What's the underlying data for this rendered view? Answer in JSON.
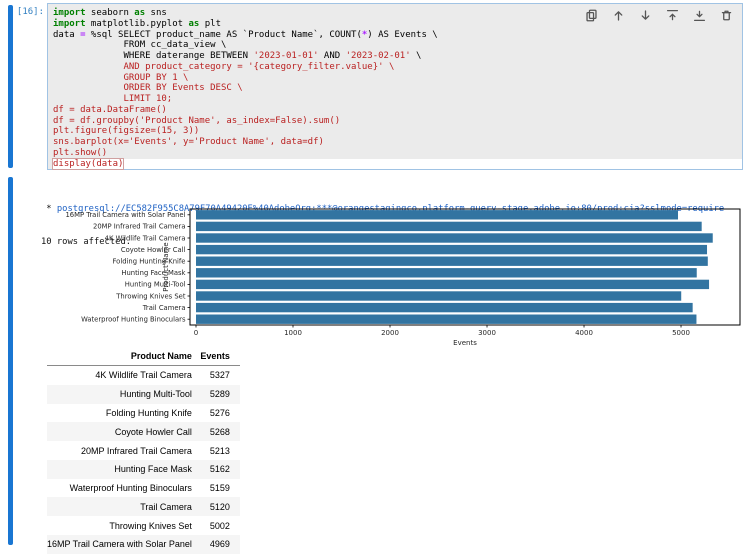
{
  "cell": {
    "execution_count": "[16]:",
    "toolbar_icons": [
      "duplicate-icon",
      "move-up-icon",
      "move-down-icon",
      "insert-above-icon",
      "insert-below-icon",
      "delete-icon"
    ],
    "code_lines": [
      {
        "segments": [
          {
            "s": "kw",
            "t": "import"
          },
          {
            "s": "p",
            "t": " seaborn "
          },
          {
            "s": "kw",
            "t": "as"
          },
          {
            "s": "p",
            "t": " sns"
          }
        ]
      },
      {
        "segments": [
          {
            "s": "kw",
            "t": "import"
          },
          {
            "s": "p",
            "t": " matplotlib.pyplot "
          },
          {
            "s": "kw",
            "t": "as"
          },
          {
            "s": "p",
            "t": " plt"
          }
        ]
      },
      {
        "segments": [
          {
            "s": "p",
            "t": "data "
          },
          {
            "s": "op",
            "t": "="
          },
          {
            "s": "p",
            "t": " %sql SELECT product_name AS `Product Name`, COUNT("
          },
          {
            "s": "op",
            "t": "*"
          },
          {
            "s": "p",
            "t": ") AS Events \\"
          }
        ]
      },
      {
        "segments": [
          {
            "s": "p",
            "t": "             FROM cc_data_view \\"
          }
        ]
      },
      {
        "segments": [
          {
            "s": "p",
            "t": "             WHERE daterange BETWEEN "
          },
          {
            "s": "str",
            "t": "'2023-01-01'"
          },
          {
            "s": "p",
            "t": " AND "
          },
          {
            "s": "str",
            "t": "'2023-02-01'"
          },
          {
            "s": "p",
            "t": " \\"
          }
        ]
      },
      {
        "segments": [
          {
            "s": "str",
            "t": "             AND product_category = '{category_filter.value}' \\"
          }
        ]
      },
      {
        "segments": [
          {
            "s": "str",
            "t": "             GROUP BY 1 \\"
          }
        ]
      },
      {
        "segments": [
          {
            "s": "str",
            "t": "             ORDER BY Events DESC \\"
          }
        ]
      },
      {
        "segments": [
          {
            "s": "str",
            "t": "             LIMIT 10;"
          }
        ]
      },
      {
        "segments": [
          {
            "s": "str",
            "t": "df = data.DataFrame()"
          }
        ]
      },
      {
        "segments": [
          {
            "s": "str",
            "t": "df = df.groupby('Product Name', as_index=False).sum()"
          }
        ]
      },
      {
        "segments": [
          {
            "s": "str",
            "t": "plt.figure(figsize=(15, 3))"
          }
        ]
      },
      {
        "segments": [
          {
            "s": "str",
            "t": "sns.barplot(x='Events', y='Product Name', data=df)"
          }
        ]
      },
      {
        "segments": [
          {
            "s": "str",
            "t": "plt.show()"
          }
        ]
      },
      {
        "segments": [
          {
            "s": "str",
            "t": "display(data)"
          }
        ],
        "selected": true
      }
    ]
  },
  "output": {
    "connection_prefix": " * ",
    "connection_url": "postgresql://EC582F955C8A79F70A49420E%40AdobeOrg:***@orangestagingco.platform-query-stage.adobe.io:80/prod:cja?sslmode=require",
    "rows_affected": "10 rows affected."
  },
  "chart_data": {
    "type": "bar",
    "orientation": "horizontal",
    "categories": [
      "16MP Trail Camera with Solar Panel",
      "20MP Infrared Trail Camera",
      "4K Wildlife Trail Camera",
      "Coyote Howler Call",
      "Folding Hunting Knife",
      "Hunting Face Mask",
      "Hunting Multi-Tool",
      "Throwing Knives Set",
      "Trail Camera",
      "Waterproof Hunting Binoculars"
    ],
    "values": [
      4969,
      5213,
      5327,
      5268,
      5276,
      5162,
      5289,
      5002,
      5120,
      5159
    ],
    "title": "",
    "xlabel": "Events",
    "ylabel": "Product Name",
    "xticks": [
      0,
      1000,
      2000,
      3000,
      4000,
      5000
    ],
    "xlim": [
      0,
      5608
    ],
    "grid": false,
    "legend": "none",
    "bar_color": "#3274a1"
  },
  "table": {
    "columns": [
      "Product Name",
      "Events"
    ],
    "rows": [
      [
        "4K Wildlife Trail Camera",
        "5327"
      ],
      [
        "Hunting Multi-Tool",
        "5289"
      ],
      [
        "Folding Hunting Knife",
        "5276"
      ],
      [
        "Coyote Howler Call",
        "5268"
      ],
      [
        "20MP Infrared Trail Camera",
        "5213"
      ],
      [
        "Hunting Face Mask",
        "5162"
      ],
      [
        "Waterproof Hunting Binoculars",
        "5159"
      ],
      [
        "Trail Camera",
        "5120"
      ],
      [
        "Throwing Knives Set",
        "5002"
      ],
      [
        "16MP Trail Camera with Solar Panel",
        "4969"
      ]
    ]
  },
  "colors": {
    "collapser_blue": "#1976d2",
    "prompt_blue": "#307fc1",
    "editor_bg": "#ebebeb",
    "editor_border": "#a0c3e4",
    "keyword_green": "#008000",
    "operator_purple": "#AA22FF",
    "string_red": "#BA2121",
    "link_blue": "#1f62c4",
    "bar_blue": "#3274a1",
    "row_stripe": "#f5f5f5"
  }
}
